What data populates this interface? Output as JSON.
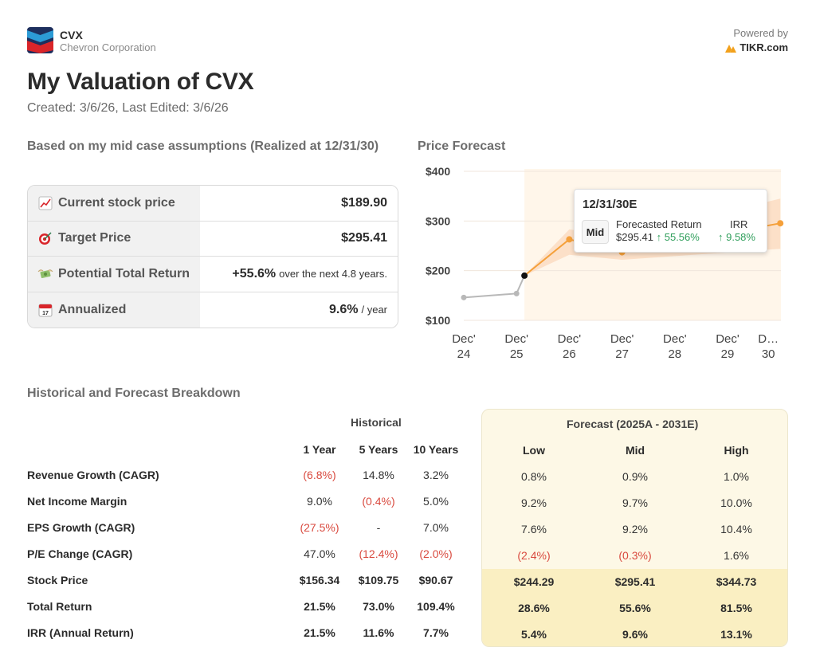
{
  "header": {
    "ticker": "CVX",
    "company": "Chevron Corporation",
    "powered_by": "Powered by",
    "brand": "TIKR.com",
    "title": "My Valuation of CVX",
    "subtitle": "Created: 3/6/26, Last Edited: 3/6/26"
  },
  "summary": {
    "heading": "Based on my mid case assumptions (Realized at 12/31/30)",
    "rows": [
      {
        "label": "Current stock price",
        "icon": "chart-increasing-icon",
        "value": "$189.90",
        "suffix": ""
      },
      {
        "label": "Target Price",
        "icon": "target-icon",
        "value": "$295.41",
        "suffix": ""
      },
      {
        "label": "Potential Total Return",
        "icon": "money-wings-icon",
        "value": "+55.6%",
        "suffix": "over the next 4.8 years."
      },
      {
        "label": "Annualized",
        "icon": "calendar-icon",
        "value": "9.6%",
        "suffix": "/ year"
      }
    ]
  },
  "price_forecast": {
    "heading": "Price Forecast",
    "tooltip": {
      "date": "12/31/30E",
      "scenario": "Mid",
      "return_label": "Forecasted Return",
      "return_price": "$295.41",
      "return_pct": "↑ 55.56%",
      "irr_label": "IRR",
      "irr_value": "↑ 9.58%"
    }
  },
  "chart_data": {
    "type": "line",
    "y_ticks": [
      "$400",
      "$300",
      "$200",
      "$100"
    ],
    "ylim": [
      100,
      400
    ],
    "categories": [
      [
        "Dec'",
        "24"
      ],
      [
        "Dec'",
        "25"
      ],
      [
        "Dec'",
        "26"
      ],
      [
        "Dec'",
        "27"
      ],
      [
        "Dec'",
        "28"
      ],
      [
        "Dec'",
        "29"
      ],
      [
        "D…",
        "30"
      ]
    ],
    "historical": [
      {
        "x": 0,
        "y": 146
      },
      {
        "x": 1,
        "y": 154
      },
      {
        "x": 1.15,
        "y": 190
      }
    ],
    "forecast_mid": [
      {
        "x": 1.15,
        "y": 190
      },
      {
        "x": 2,
        "y": 263
      },
      {
        "x": 3,
        "y": 237
      },
      {
        "x": 6,
        "y": 295.41
      }
    ],
    "forecast_low": [
      {
        "x": 1.15,
        "y": 190
      },
      {
        "x": 2,
        "y": 232
      },
      {
        "x": 3,
        "y": 222
      },
      {
        "x": 6,
        "y": 244
      }
    ],
    "forecast_high": [
      {
        "x": 1.15,
        "y": 190
      },
      {
        "x": 2,
        "y": 283
      },
      {
        "x": 3,
        "y": 268
      },
      {
        "x": 6,
        "y": 345
      }
    ],
    "colors": {
      "historical": "#b8b8b8",
      "forecast": "#f5a03a",
      "band": "#fbdcc2",
      "shade": "#fff6ea",
      "current": "#111111"
    }
  },
  "breakdown": {
    "heading": "Historical and Forecast Breakdown",
    "historical_header": "Historical",
    "forecast_header": "Forecast (2025A - 2031E)",
    "hist_cols": [
      "1 Year",
      "5 Years",
      "10 Years"
    ],
    "fc_cols": [
      "Low",
      "Mid",
      "High"
    ],
    "rows": [
      {
        "label": "Revenue Growth (CAGR)",
        "hist": [
          "(6.8%)",
          "14.8%",
          "3.2%"
        ],
        "fc": [
          "0.8%",
          "0.9%",
          "1.0%"
        ]
      },
      {
        "label": "Net Income Margin",
        "hist": [
          "9.0%",
          "(0.4%)",
          "5.0%"
        ],
        "fc": [
          "9.2%",
          "9.7%",
          "10.0%"
        ]
      },
      {
        "label": "EPS Growth (CAGR)",
        "hist": [
          "(27.5%)",
          "-",
          "7.0%"
        ],
        "fc": [
          "7.6%",
          "9.2%",
          "10.4%"
        ]
      },
      {
        "label": "P/E Change (CAGR)",
        "hist": [
          "47.0%",
          "(12.4%)",
          "(2.0%)"
        ],
        "fc": [
          "(2.4%)",
          "(0.3%)",
          "1.6%"
        ]
      },
      {
        "label": "Stock Price",
        "hist": [
          "$156.34",
          "$109.75",
          "$90.67"
        ],
        "fc": [
          "$244.29",
          "$295.41",
          "$344.73"
        ]
      },
      {
        "label": "Total Return",
        "hist": [
          "21.5%",
          "73.0%",
          "109.4%"
        ],
        "fc": [
          "28.6%",
          "55.6%",
          "81.5%"
        ]
      },
      {
        "label": "IRR (Annual Return)",
        "hist": [
          "21.5%",
          "11.6%",
          "7.7%"
        ],
        "fc": [
          "5.4%",
          "9.6%",
          "13.1%"
        ]
      }
    ]
  }
}
